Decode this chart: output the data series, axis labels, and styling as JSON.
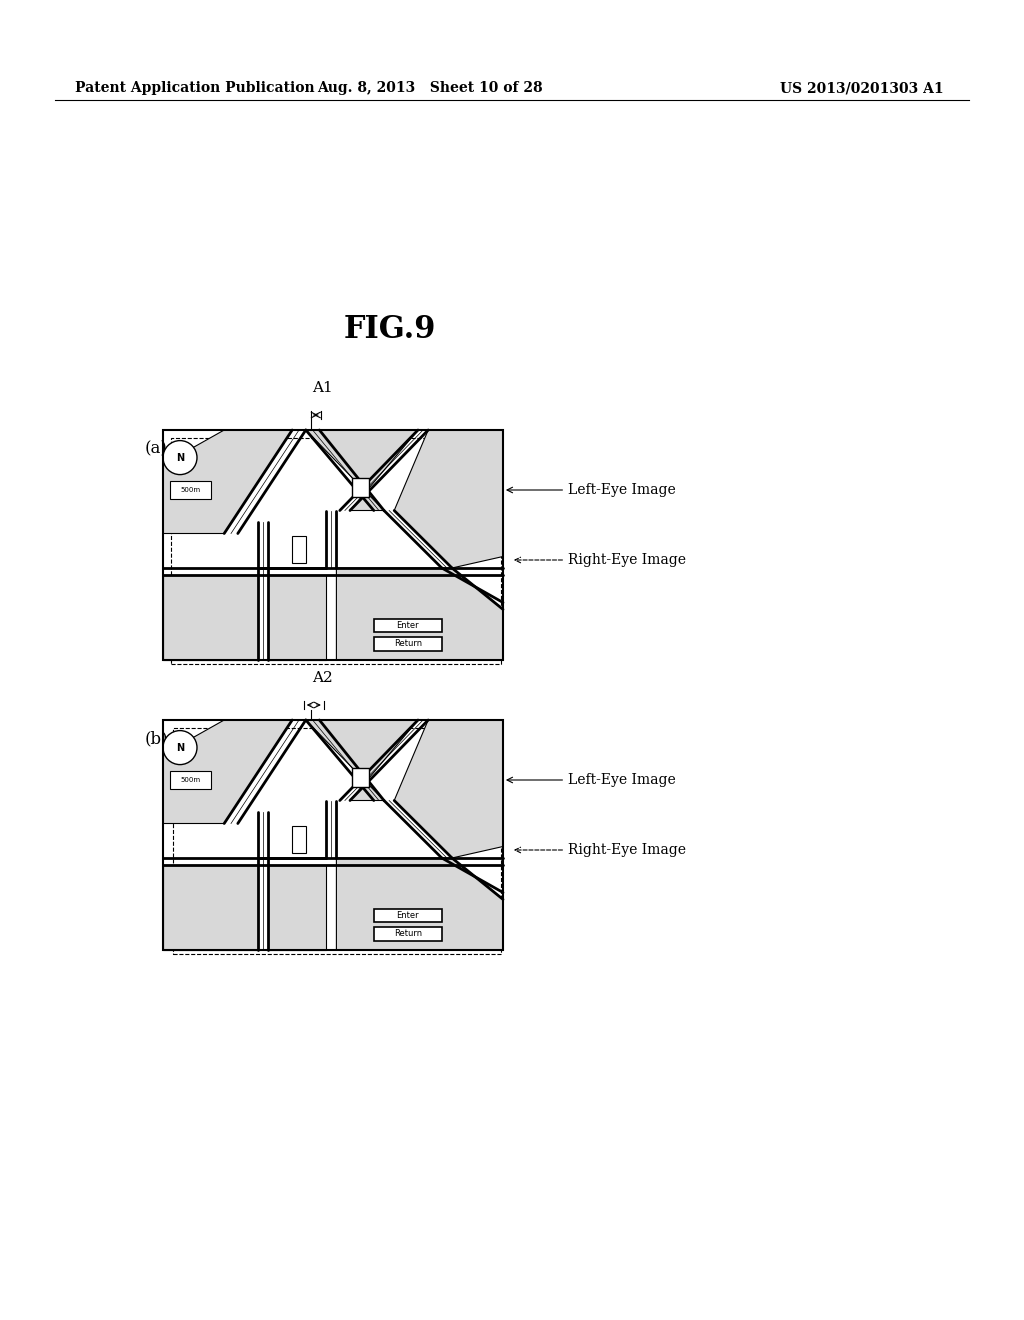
{
  "title": "FIG.9",
  "header_left": "Patent Application Publication",
  "header_mid": "Aug. 8, 2013   Sheet 10 of 28",
  "header_right": "US 2013/0201303 A1",
  "fig_label_a": "(a)",
  "fig_label_b": "(b)",
  "label_A1": "A1",
  "label_A2": "A2",
  "left_eye_label": "Left-Eye Image",
  "right_eye_label": "Right-Eye Image",
  "bg_color": "#ffffff",
  "line_color": "#000000",
  "map_bg": "#ffffff",
  "road_color": "#ffffff",
  "block_color": "#e8e8e8"
}
